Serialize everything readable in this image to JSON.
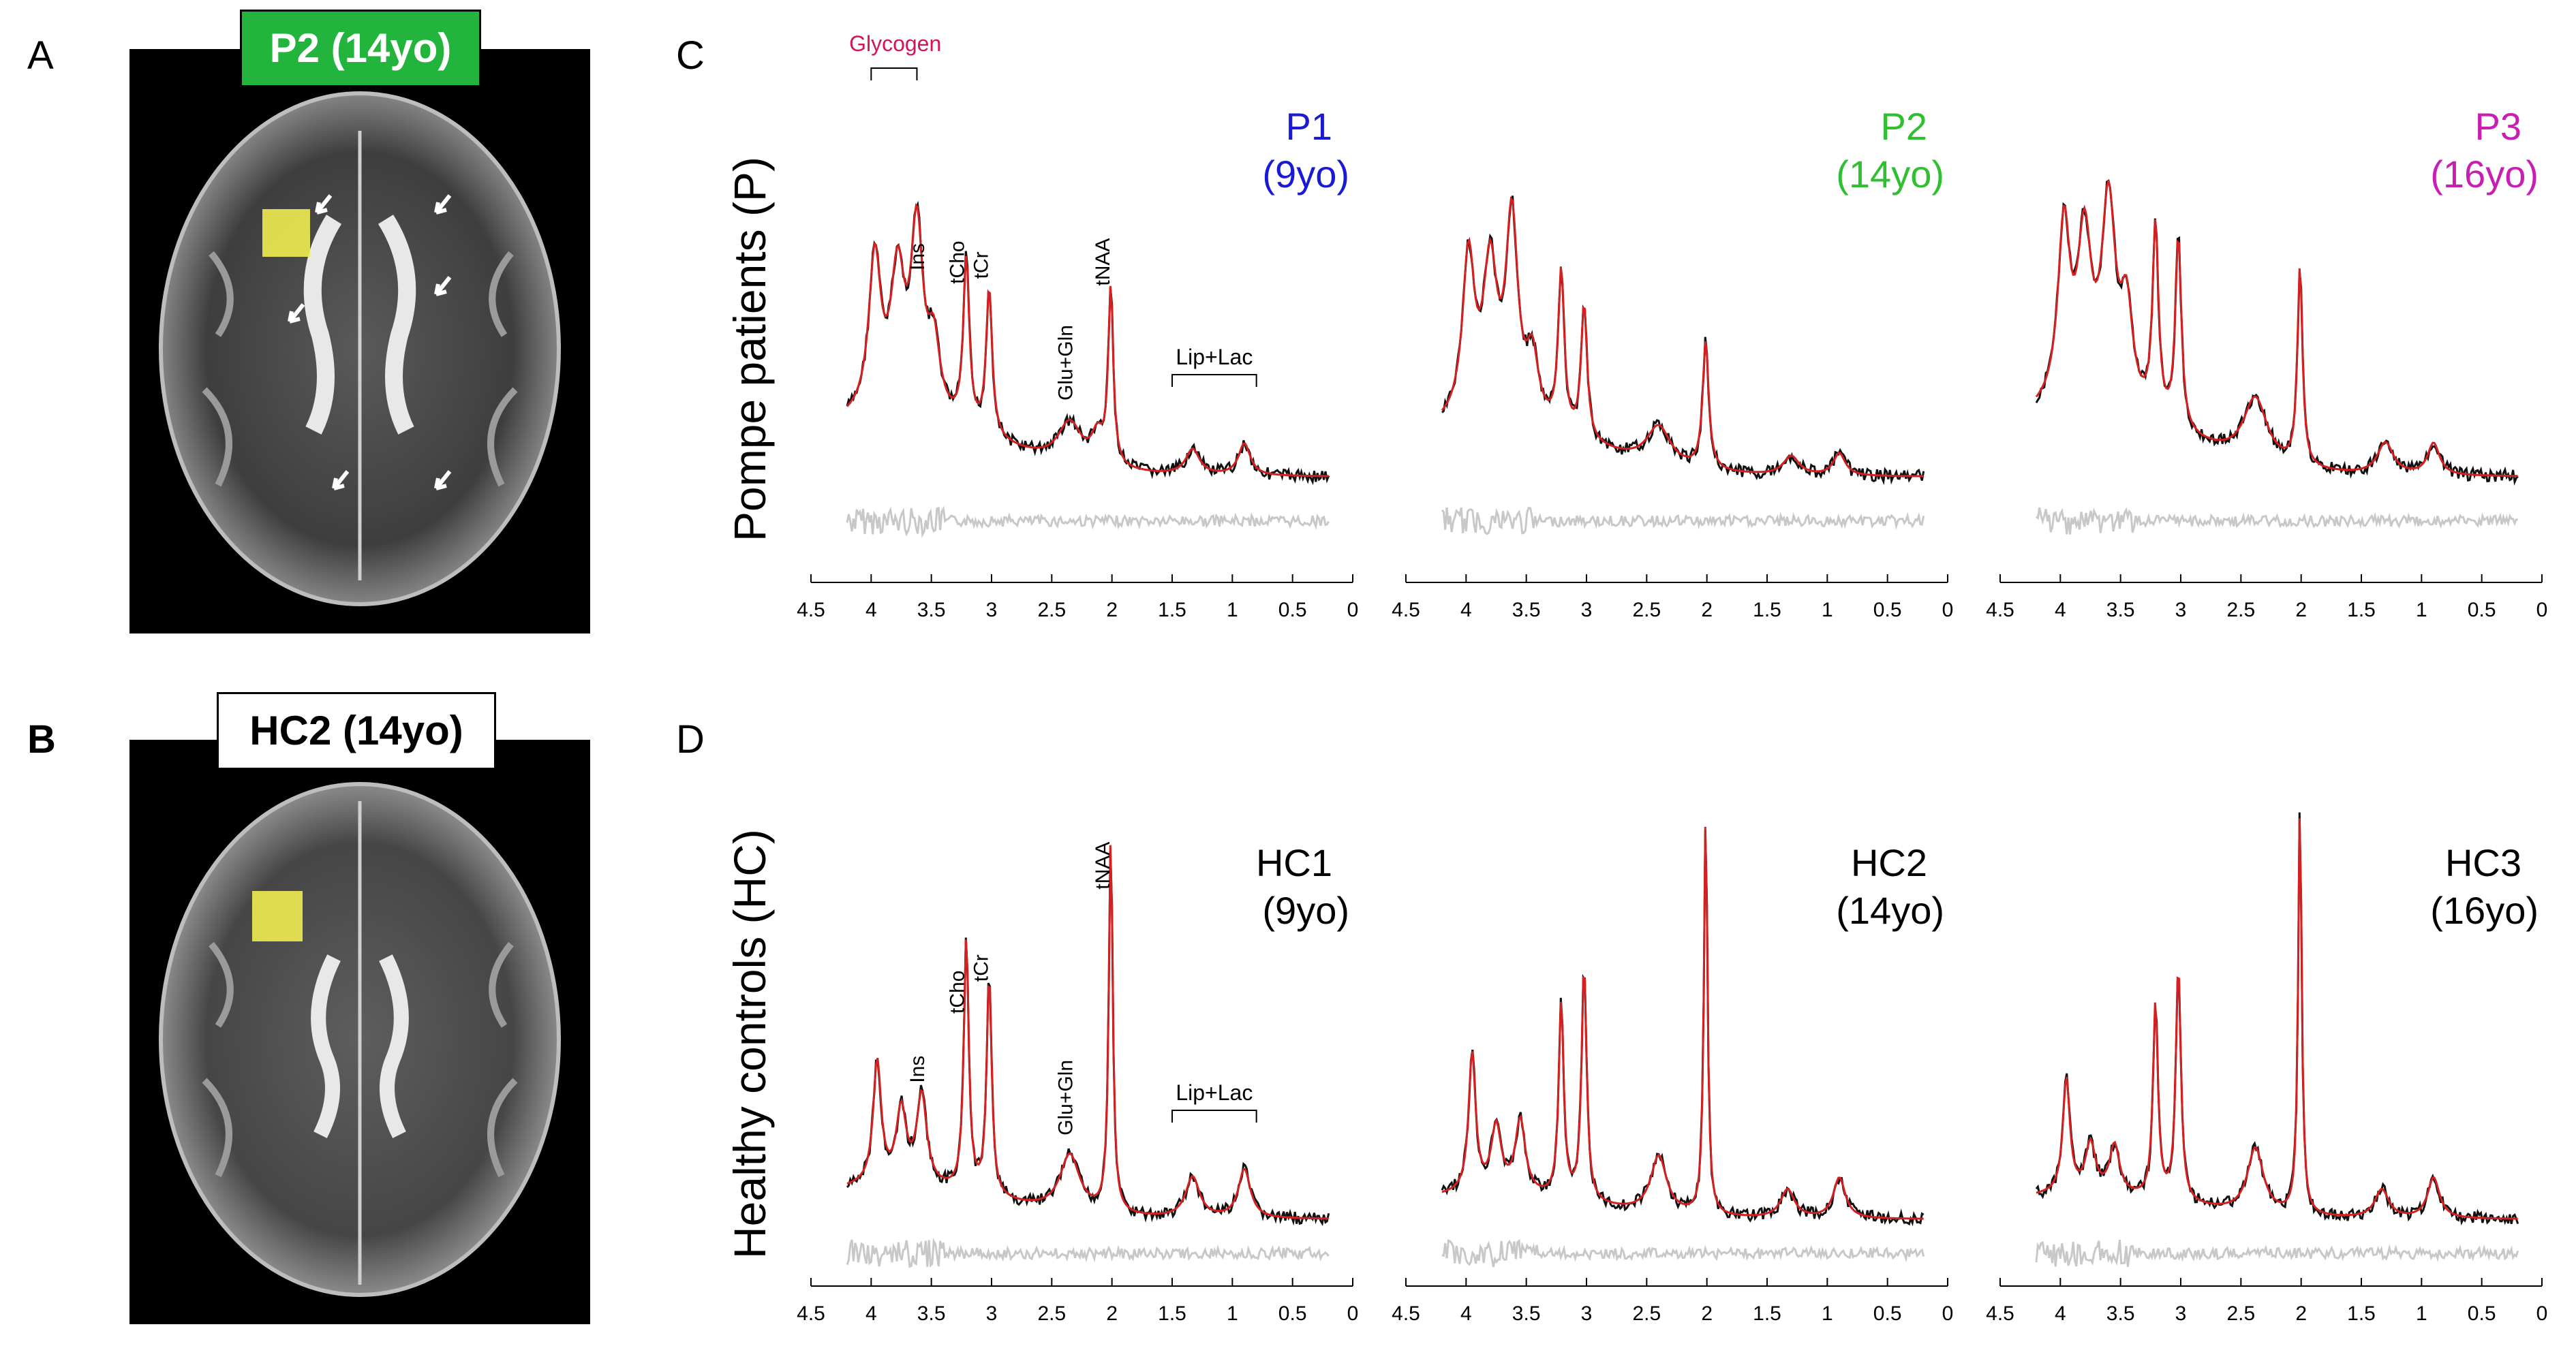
{
  "panels": {
    "a": "A",
    "b": "B",
    "c": "C",
    "d": "D",
    "a_label": "P2 (14yo)",
    "b_label": "HC2 (14yo)"
  },
  "colors": {
    "patient_label_bg": "#22b43c",
    "control_label_bg": "#ffffff",
    "voxel": "#f0ec50",
    "fit": "#d42020",
    "spectrum": "#111111",
    "residual": "#c8c8c8",
    "glycogen": "#d4145a",
    "P1": "#1a1ad2",
    "P2": "#2fbf30",
    "P3": "#c81eb4"
  },
  "row_labels": {
    "patients": "Pompe patients (P)",
    "controls": "Healthy controls (HC)"
  },
  "chart_data": [
    {
      "type": "line",
      "row": "patients",
      "title_line1": "P1",
      "title_line2": "(9yo)",
      "title_color": "#1a1ad2",
      "xlabel": "",
      "ylabel": "",
      "xlim": [
        4.5,
        0
      ],
      "x_reversed": true,
      "ticks": [
        "4.5",
        "4",
        "3.5",
        "3",
        "2.5",
        "2",
        "1.5",
        "1",
        "0.5",
        "0"
      ],
      "peaks": [
        {
          "ppm": 3.97,
          "amp": 0.48,
          "w": 0.06
        },
        {
          "ppm": 3.78,
          "amp": 0.42,
          "w": 0.07
        },
        {
          "ppm": 3.62,
          "amp": 0.56,
          "w": 0.06
        },
        {
          "ppm": 3.48,
          "amp": 0.22,
          "w": 0.06
        },
        {
          "ppm": 3.21,
          "amp": 0.52,
          "w": 0.03
        },
        {
          "ppm": 3.02,
          "amp": 0.46,
          "w": 0.03
        },
        {
          "ppm": 2.35,
          "amp": 0.13,
          "w": 0.12
        },
        {
          "ppm": 2.12,
          "amp": 0.09,
          "w": 0.06
        },
        {
          "ppm": 2.01,
          "amp": 0.55,
          "w": 0.025
        },
        {
          "ppm": 1.33,
          "amp": 0.08,
          "w": 0.07
        },
        {
          "ppm": 0.9,
          "amp": 0.1,
          "w": 0.06
        }
      ],
      "baseline": 0.18,
      "annotations": [
        {
          "text": "Glycogen",
          "ppm": 3.95,
          "color": "#d4145a",
          "kind": "label"
        },
        {
          "text": "Ins",
          "ppm": 3.56,
          "kind": "rot"
        },
        {
          "text": "tCho",
          "ppm": 3.23,
          "kind": "rot"
        },
        {
          "text": "tCr",
          "ppm": 3.03,
          "kind": "rot"
        },
        {
          "text": "Glu+Gln",
          "ppm": 2.33,
          "kind": "rot"
        },
        {
          "text": "tNAA",
          "ppm": 2.02,
          "kind": "rot"
        },
        {
          "text": "Lip+Lac",
          "ppm": 1.1,
          "kind": "label"
        }
      ]
    },
    {
      "type": "line",
      "row": "patients",
      "title_line1": "P2",
      "title_line2": "(14yo)",
      "title_color": "#2fbf30",
      "xlabel": "",
      "ylabel": "",
      "xlim": [
        4.5,
        0
      ],
      "x_reversed": true,
      "ticks": [
        "4.5",
        "4",
        "3.5",
        "3",
        "2.5",
        "2",
        "1.5",
        "1",
        "0.5",
        "0"
      ],
      "peaks": [
        {
          "ppm": 3.98,
          "amp": 0.5,
          "w": 0.06
        },
        {
          "ppm": 3.8,
          "amp": 0.46,
          "w": 0.07
        },
        {
          "ppm": 3.62,
          "amp": 0.62,
          "w": 0.06
        },
        {
          "ppm": 3.45,
          "amp": 0.2,
          "w": 0.06
        },
        {
          "ppm": 3.21,
          "amp": 0.5,
          "w": 0.03
        },
        {
          "ppm": 3.02,
          "amp": 0.42,
          "w": 0.03
        },
        {
          "ppm": 2.4,
          "amp": 0.12,
          "w": 0.12
        },
        {
          "ppm": 2.01,
          "amp": 0.4,
          "w": 0.03
        },
        {
          "ppm": 1.3,
          "amp": 0.06,
          "w": 0.08
        },
        {
          "ppm": 0.9,
          "amp": 0.07,
          "w": 0.06
        }
      ],
      "baseline": 0.16,
      "annotations": []
    },
    {
      "type": "line",
      "row": "patients",
      "title_line1": "P3",
      "title_line2": "(16yo)",
      "title_color": "#c81eb4",
      "xlabel": "",
      "ylabel": "",
      "xlim": [
        4.5,
        0
      ],
      "x_reversed": true,
      "ticks": [
        "4.5",
        "4",
        "3.5",
        "3",
        "2.5",
        "2",
        "1.5",
        "1",
        "0.5",
        "0"
      ],
      "peaks": [
        {
          "ppm": 3.97,
          "amp": 0.55,
          "w": 0.06
        },
        {
          "ppm": 3.8,
          "amp": 0.5,
          "w": 0.07
        },
        {
          "ppm": 3.6,
          "amp": 0.62,
          "w": 0.07
        },
        {
          "ppm": 3.45,
          "amp": 0.3,
          "w": 0.06
        },
        {
          "ppm": 3.21,
          "amp": 0.6,
          "w": 0.03
        },
        {
          "ppm": 3.02,
          "amp": 0.6,
          "w": 0.03
        },
        {
          "ppm": 2.38,
          "amp": 0.2,
          "w": 0.12
        },
        {
          "ppm": 2.01,
          "amp": 0.62,
          "w": 0.025
        },
        {
          "ppm": 1.3,
          "amp": 0.1,
          "w": 0.08
        },
        {
          "ppm": 0.9,
          "amp": 0.1,
          "w": 0.06
        }
      ],
      "baseline": 0.2,
      "annotations": []
    },
    {
      "type": "line",
      "row": "controls",
      "title_line1": "HC1",
      "title_line2": "(9yo)",
      "title_color": "#000000",
      "xlabel": "",
      "ylabel": "",
      "xlim": [
        4.5,
        0
      ],
      "x_reversed": true,
      "ticks": [
        "4.5",
        "4",
        "3.5",
        "3",
        "2.5",
        "2",
        "1.5",
        "1",
        "0.5",
        "0"
      ],
      "peaks": [
        {
          "ppm": 3.95,
          "amp": 0.3,
          "w": 0.04
        },
        {
          "ppm": 3.75,
          "amp": 0.18,
          "w": 0.05
        },
        {
          "ppm": 3.58,
          "amp": 0.22,
          "w": 0.05
        },
        {
          "ppm": 3.21,
          "amp": 0.62,
          "w": 0.025
        },
        {
          "ppm": 3.02,
          "amp": 0.54,
          "w": 0.025
        },
        {
          "ppm": 2.35,
          "amp": 0.14,
          "w": 0.1
        },
        {
          "ppm": 2.01,
          "amp": 0.92,
          "w": 0.02
        },
        {
          "ppm": 1.33,
          "amp": 0.1,
          "w": 0.07
        },
        {
          "ppm": 0.9,
          "amp": 0.12,
          "w": 0.06
        }
      ],
      "baseline": 0.08,
      "annotations": [
        {
          "text": "Ins",
          "ppm": 3.56,
          "kind": "rot"
        },
        {
          "text": "tCho",
          "ppm": 3.23,
          "kind": "rot"
        },
        {
          "text": "tCr",
          "ppm": 3.03,
          "kind": "rot"
        },
        {
          "text": "Glu+Gln",
          "ppm": 2.33,
          "kind": "rot"
        },
        {
          "text": "tNAA",
          "ppm": 2.02,
          "kind": "rot"
        },
        {
          "text": "Lip+Lac",
          "ppm": 1.1,
          "kind": "label"
        }
      ]
    },
    {
      "type": "line",
      "row": "controls",
      "title_line1": "HC2",
      "title_line2": "(14yo)",
      "title_color": "#000000",
      "xlabel": "",
      "ylabel": "",
      "xlim": [
        4.5,
        0
      ],
      "x_reversed": true,
      "ticks": [
        "4.5",
        "4",
        "3.5",
        "3",
        "2.5",
        "2",
        "1.5",
        "1",
        "0.5",
        "0"
      ],
      "peaks": [
        {
          "ppm": 3.95,
          "amp": 0.34,
          "w": 0.035
        },
        {
          "ppm": 3.75,
          "amp": 0.16,
          "w": 0.05
        },
        {
          "ppm": 3.55,
          "amp": 0.18,
          "w": 0.05
        },
        {
          "ppm": 3.21,
          "amp": 0.48,
          "w": 0.025
        },
        {
          "ppm": 3.02,
          "amp": 0.58,
          "w": 0.025
        },
        {
          "ppm": 2.4,
          "amp": 0.14,
          "w": 0.08
        },
        {
          "ppm": 2.01,
          "amp": 0.98,
          "w": 0.018
        },
        {
          "ppm": 1.33,
          "amp": 0.07,
          "w": 0.07
        },
        {
          "ppm": 0.9,
          "amp": 0.1,
          "w": 0.06
        }
      ],
      "baseline": 0.06,
      "annotations": []
    },
    {
      "type": "line",
      "row": "controls",
      "title_line1": "HC3",
      "title_line2": "(16yo)",
      "title_color": "#000000",
      "xlabel": "",
      "ylabel": "",
      "xlim": [
        4.5,
        0
      ],
      "x_reversed": true,
      "ticks": [
        "4.5",
        "4",
        "3.5",
        "3",
        "2.5",
        "2",
        "1.5",
        "1",
        "0.5",
        "0"
      ],
      "peaks": [
        {
          "ppm": 3.95,
          "amp": 0.28,
          "w": 0.035
        },
        {
          "ppm": 3.75,
          "amp": 0.12,
          "w": 0.05
        },
        {
          "ppm": 3.55,
          "amp": 0.12,
          "w": 0.05
        },
        {
          "ppm": 3.21,
          "amp": 0.48,
          "w": 0.025
        },
        {
          "ppm": 3.02,
          "amp": 0.58,
          "w": 0.025
        },
        {
          "ppm": 2.38,
          "amp": 0.16,
          "w": 0.08
        },
        {
          "ppm": 2.01,
          "amp": 1.0,
          "w": 0.018
        },
        {
          "ppm": 1.33,
          "amp": 0.07,
          "w": 0.07
        },
        {
          "ppm": 0.9,
          "amp": 0.1,
          "w": 0.06
        }
      ],
      "baseline": 0.06,
      "annotations": []
    }
  ]
}
